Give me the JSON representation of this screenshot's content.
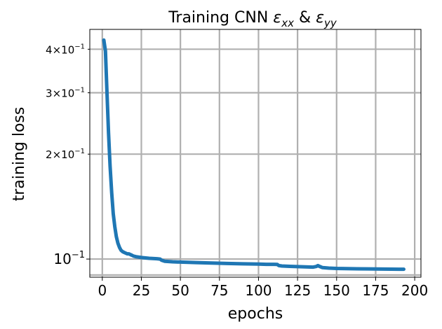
{
  "chart_data": {
    "type": "line",
    "title_parts": {
      "prefix": "Training CNN ",
      "eps1": "ε",
      "sub1": "xx",
      "amp": " & ",
      "eps2": "ε",
      "sub2": "yy"
    },
    "xlabel": "epochs",
    "ylabel": "training loss",
    "xlim": [
      -8,
      204
    ],
    "ylim": [
      0.0887,
      0.456
    ],
    "yscale": "log",
    "grid": true,
    "legend": "none",
    "x_ticks": [
      {
        "value": 0,
        "label": "0"
      },
      {
        "value": 25,
        "label": "25"
      },
      {
        "value": 50,
        "label": "50"
      },
      {
        "value": 75,
        "label": "75"
      },
      {
        "value": 100,
        "label": "100"
      },
      {
        "value": 125,
        "label": "125"
      },
      {
        "value": 150,
        "label": "150"
      },
      {
        "value": 175,
        "label": "175"
      },
      {
        "value": 200,
        "label": "200"
      }
    ],
    "y_major_ticks": [
      {
        "value": 0.1,
        "base": "10",
        "exp": "−1"
      }
    ],
    "y_minor_ticks": [
      {
        "value": 0.2,
        "mant": "2",
        "base": "10",
        "exp": "−1"
      },
      {
        "value": 0.3,
        "mant": "3",
        "base": "10",
        "exp": "−1"
      },
      {
        "value": 0.4,
        "mant": "4",
        "base": "10",
        "exp": "−1"
      }
    ],
    "y_unlabeled_gridlines": [
      0.09
    ],
    "series": [
      {
        "color": "#1f77b4",
        "x": [
          1,
          2,
          3,
          4,
          5,
          6,
          7,
          8,
          9,
          10,
          11,
          12,
          13,
          14,
          15,
          16,
          17,
          18,
          19,
          20,
          22,
          25,
          30,
          35,
          37,
          38,
          40,
          45,
          50,
          60,
          70,
          80,
          90,
          100,
          105,
          110,
          112,
          113,
          115,
          120,
          125,
          130,
          135,
          137,
          138,
          139,
          141,
          145,
          150,
          160,
          170,
          180,
          190,
          193
        ],
        "y": [
          0.425,
          0.395,
          0.3,
          0.23,
          0.185,
          0.155,
          0.135,
          0.124,
          0.116,
          0.111,
          0.108,
          0.106,
          0.105,
          0.1045,
          0.104,
          0.1035,
          0.1035,
          0.103,
          0.1025,
          0.102,
          0.1015,
          0.101,
          0.1005,
          0.1002,
          0.1,
          0.0992,
          0.0985,
          0.0982,
          0.098,
          0.0977,
          0.0974,
          0.0971,
          0.0969,
          0.0967,
          0.0966,
          0.0966,
          0.0965,
          0.0958,
          0.0955,
          0.0953,
          0.0951,
          0.095,
          0.0948,
          0.0952,
          0.0958,
          0.0953,
          0.0945,
          0.0942,
          0.094,
          0.0938,
          0.0937,
          0.0936,
          0.0935,
          0.0935
        ]
      }
    ]
  }
}
